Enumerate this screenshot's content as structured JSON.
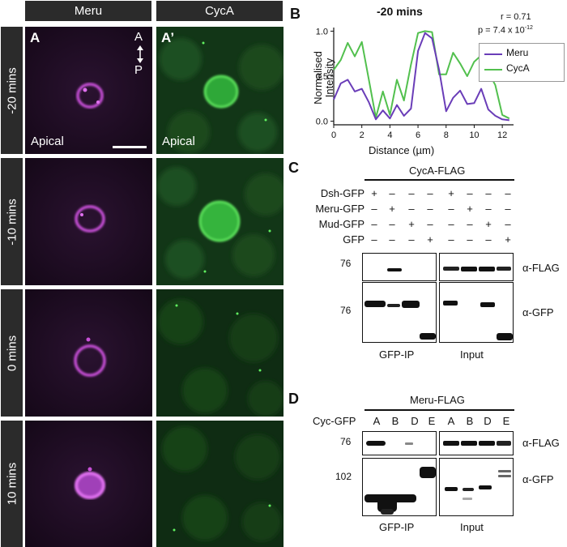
{
  "columns": {
    "meru": "Meru",
    "cyca": "CycA"
  },
  "rows": [
    "-20 mins",
    "-10 mins",
    "0 mins",
    "10 mins"
  ],
  "panel_letters": {
    "a": "A",
    "a_prime": "A’"
  },
  "axis_marker": {
    "top": "A",
    "bottom": "P"
  },
  "apical_label": "Apical",
  "colors": {
    "meru": "#6a3db8",
    "cyca": "#52c04e",
    "magenta_signal": "#e060f0",
    "green_signal": "#40d040"
  },
  "panel_b": {
    "letter": "B",
    "stat_r": "r = 0.71",
    "stat_p": "p = 7.4 x 10",
    "stat_p_exp": "-12",
    "chart_data": {
      "type": "line",
      "title": "-20 mins",
      "xlabel": "Distance (µm)",
      "ylabel": "Normalised Intensity",
      "xlim": [
        0,
        12.8
      ],
      "ylim": [
        0,
        1.0
      ],
      "xticks": [
        0,
        2,
        4,
        6,
        8,
        10,
        12
      ],
      "yticks": [
        0.0,
        0.5,
        1.0
      ],
      "legend": "right",
      "series": [
        {
          "name": "Meru",
          "x": [
            0,
            0.5,
            1,
            1.5,
            2,
            2.5,
            3,
            3.5,
            4,
            4.5,
            5,
            5.5,
            6,
            6.5,
            7,
            7.5,
            8,
            8.5,
            9,
            9.5,
            10,
            10.5,
            11,
            11.5,
            12,
            12.5
          ],
          "y": [
            0.24,
            0.42,
            0.46,
            0.33,
            0.36,
            0.21,
            0.02,
            0.12,
            0.03,
            0.18,
            0.06,
            0.14,
            0.78,
            0.98,
            0.92,
            0.57,
            0.11,
            0.26,
            0.34,
            0.19,
            0.2,
            0.36,
            0.13,
            0.06,
            0.02,
            0.01
          ]
        },
        {
          "name": "CycA",
          "x": [
            0,
            0.5,
            1,
            1.5,
            2,
            2.5,
            3,
            3.5,
            4,
            4.5,
            5,
            5.5,
            6,
            6.5,
            7,
            7.5,
            8,
            8.5,
            9,
            9.5,
            10,
            10.5,
            11,
            11.5,
            12,
            12.5
          ],
          "y": [
            0.57,
            0.68,
            0.87,
            0.72,
            0.88,
            0.46,
            0.04,
            0.33,
            0.07,
            0.46,
            0.23,
            0.63,
            0.98,
            1.0,
            0.99,
            0.52,
            0.52,
            0.76,
            0.64,
            0.5,
            0.66,
            0.73,
            0.55,
            0.4,
            0.07,
            0.03
          ]
        }
      ]
    }
  },
  "panel_c": {
    "letter": "C",
    "header": "CycA-FLAG",
    "rows": [
      {
        "label": "Dsh-GFP",
        "marks": [
          "+",
          "–",
          "–",
          "–",
          "+",
          "–",
          "–",
          "–"
        ]
      },
      {
        "label": "Meru-GFP",
        "marks": [
          "–",
          "+",
          "–",
          "–",
          "–",
          "+",
          "–",
          "–"
        ]
      },
      {
        "label": "Mud-GFP",
        "marks": [
          "–",
          "–",
          "+",
          "–",
          "–",
          "–",
          "+",
          "–"
        ]
      },
      {
        "label": "GFP",
        "marks": [
          "–",
          "–",
          "–",
          "+",
          "–",
          "–",
          "–",
          "+"
        ]
      }
    ],
    "mw_top": "76",
    "mw_bottom": "76",
    "ab_top": "α-FLAG",
    "ab_bottom": "α-GFP",
    "left_label": "GFP-IP",
    "right_label": "Input"
  },
  "panel_d": {
    "letter": "D",
    "header": "Meru-FLAG",
    "row_label": "Cyc-GFP",
    "lanes": [
      "A",
      "B",
      "D",
      "E",
      "A",
      "B",
      "D",
      "E"
    ],
    "mw_top": "76",
    "mw_bottom": "102",
    "ab_top": "α-FLAG",
    "ab_bottom": "α-GFP",
    "left_label": "GFP-IP",
    "right_label": "Input"
  }
}
